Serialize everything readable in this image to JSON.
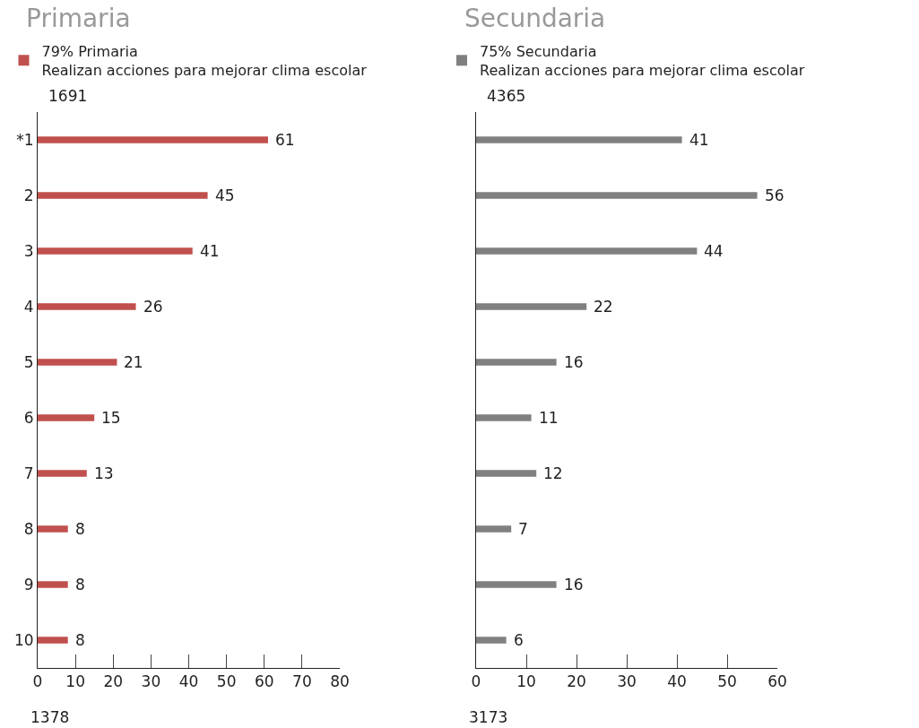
{
  "chart_data": [
    {
      "type": "bar",
      "orientation": "horizontal",
      "title": "Primaria",
      "categories": [
        "*1",
        "2",
        "3",
        "4",
        "5",
        "6",
        "7",
        "8",
        "9",
        "10"
      ],
      "series": [
        {
          "name": "79% Primaria\nRealizan acciones para mejorar clima escolar",
          "color": "#c0504d",
          "values": [
            61,
            45,
            41,
            26,
            21,
            15,
            13,
            8,
            8,
            8
          ]
        }
      ],
      "data_labels": true,
      "xlim": [
        0,
        80
      ],
      "xticks": [
        0,
        10,
        20,
        30,
        40,
        50,
        60,
        70,
        80
      ],
      "legend": "top",
      "annotations": [
        "1691",
        "1378"
      ]
    },
    {
      "type": "bar",
      "orientation": "horizontal",
      "title": "Secundaria",
      "categories": [
        null,
        null,
        null,
        null,
        null,
        null,
        null,
        null,
        null,
        null
      ],
      "series": [
        {
          "name": "75% Secundaria\nRealizan acciones para mejorar clima escolar",
          "color": "#808080",
          "values": [
            41,
            56,
            44,
            22,
            16,
            11,
            12,
            7,
            16,
            6
          ]
        }
      ],
      "data_labels": true,
      "xlim": [
        0,
        60
      ],
      "xticks": [
        0,
        10,
        20,
        30,
        40,
        50,
        60
      ],
      "legend": "top",
      "tick_labels": "x",
      "annotations": [
        "4365",
        "3173"
      ]
    }
  ]
}
